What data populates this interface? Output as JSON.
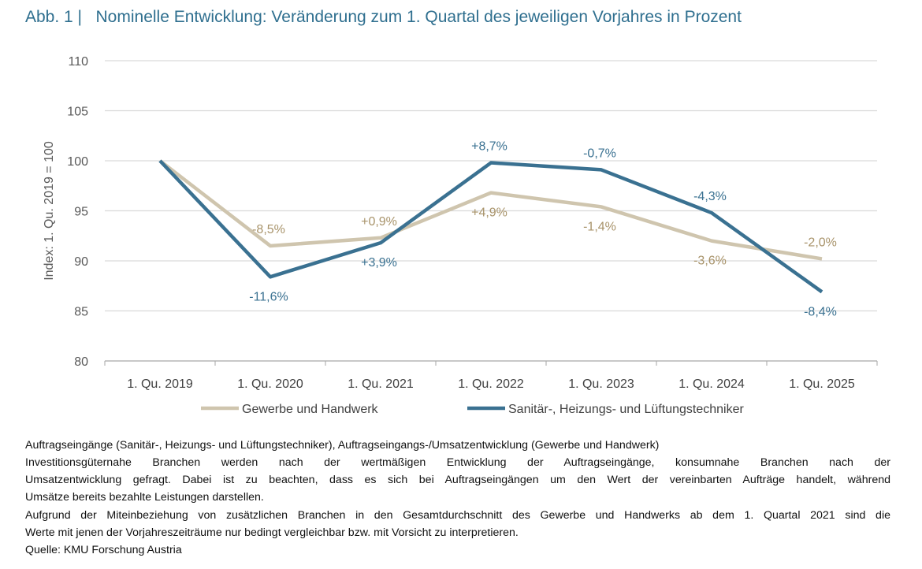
{
  "title": "Abb. 1 |   Nominelle Entwicklung: Veränderung zum 1. Quartal des jeweiligen Vorjahres in Prozent",
  "chart_data": {
    "type": "line",
    "ylabel": "Index: 1. Qu. 2019 = 100",
    "ylim": [
      80,
      110
    ],
    "yticks": [
      80,
      85,
      90,
      95,
      100,
      105,
      110
    ],
    "grid": true,
    "legend": "bottom",
    "categories": [
      "1. Qu. 2019",
      "1. Qu. 2020",
      "1. Qu. 2021",
      "1. Qu. 2022",
      "1. Qu. 2023",
      "1. Qu. 2024",
      "1. Qu. 2025"
    ],
    "series": [
      {
        "name": "Gewerbe und Handwerk",
        "color": "#cfc5ae",
        "label_color": "#a8936a",
        "values": [
          100,
          91.5,
          92.3,
          96.8,
          95.4,
          92.0,
          90.2
        ],
        "labels": [
          "",
          "-8,5%",
          "+0,9%",
          "+4,9%",
          "-1,4%",
          "-3,6%",
          "-2,0%"
        ],
        "label_pos": [
          "",
          "above",
          "above",
          "below",
          "below",
          "below",
          "above"
        ]
      },
      {
        "name": "Sanitär-, Heizungs- und Lüftungstechniker",
        "color": "#3a7191",
        "label_color": "#3a7191",
        "values": [
          100,
          88.4,
          91.8,
          99.8,
          99.1,
          94.8,
          86.9
        ],
        "labels": [
          "",
          "-11,6%",
          "+3,9%",
          "+8,7%",
          "-0,7%",
          "-4,3%",
          "-8,4%"
        ],
        "label_pos": [
          "",
          "below",
          "below",
          "above",
          "above",
          "above",
          "below"
        ]
      }
    ]
  },
  "notes": {
    "line1": "Auftragseingänge (Sanitär-, Heizungs- und Lüftungstechniker), Auftragseingangs-/Umsatzentwicklung (Gewerbe und Handwerk)",
    "line2": "Investitionsgüternahe Branchen werden nach der wertmäßigen Entwicklung der Auftragseingänge, konsumnahe Branchen nach der",
    "line3": "Umsatzentwicklung gefragt. Dabei ist zu beachten, dass es sich bei Auftragseingängen um den Wert der vereinbarten Aufträge handelt, während",
    "line4": "Umsätze bereits bezahlte Leistungen darstellen.",
    "line5": "Aufgrund der Miteinbeziehung von zusätzlichen Branchen in den Gesamtdurchschnitt des Gewerbe und Handwerks ab dem 1. Quartal 2021 sind die",
    "line6": "Werte mit jenen der Vorjahreszeiträume nur bedingt vergleichbar bzw. mit Vorsicht zu interpretieren.",
    "source": "Quelle: KMU Forschung Austria"
  }
}
